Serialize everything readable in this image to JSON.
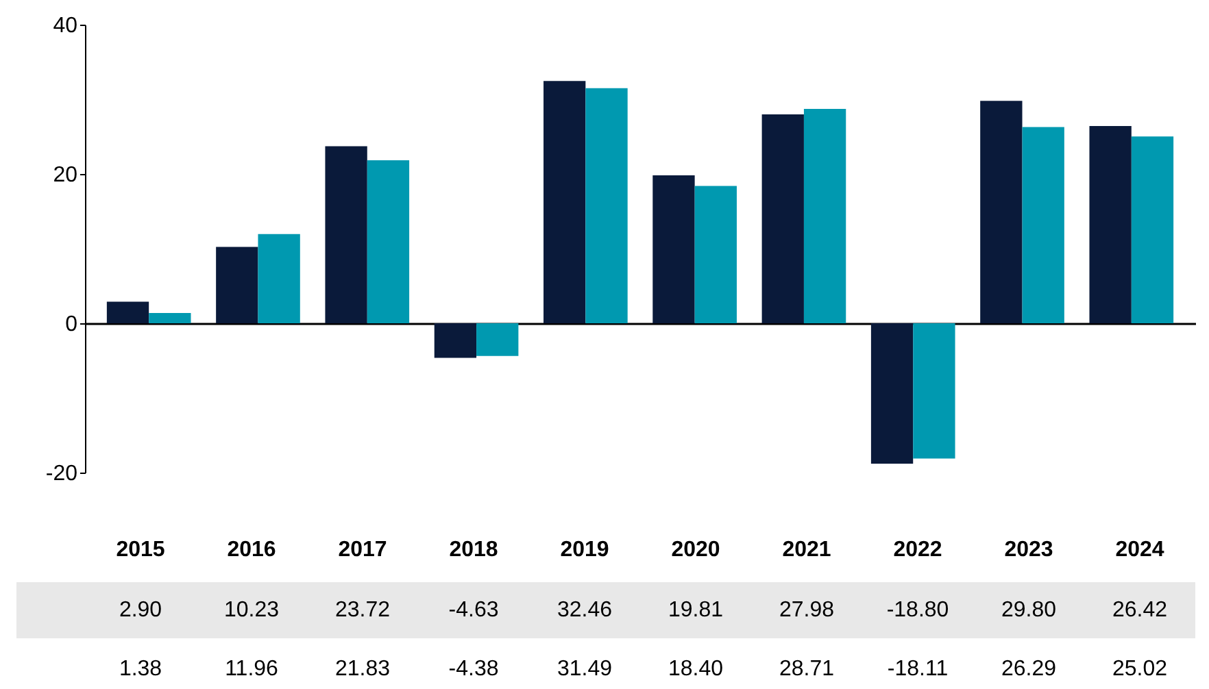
{
  "chart_data": {
    "type": "bar",
    "categories": [
      "2015",
      "2016",
      "2017",
      "2018",
      "2019",
      "2020",
      "2021",
      "2022",
      "2023",
      "2024"
    ],
    "series": [
      {
        "color": "#0a1a3a",
        "values": [
          2.9,
          10.23,
          23.72,
          -4.63,
          32.46,
          19.81,
          27.98,
          -18.8,
          29.8,
          26.42
        ],
        "value_labels": [
          "2.90",
          "10.23",
          "23.72",
          "-4.63",
          "32.46",
          "19.81",
          "27.98",
          "-18.80",
          "29.80",
          "26.42"
        ]
      },
      {
        "color": "#0099b0",
        "values": [
          1.38,
          11.96,
          21.83,
          -4.38,
          31.49,
          18.4,
          28.71,
          -18.11,
          26.29,
          25.02
        ],
        "value_labels": [
          "1.38",
          "11.96",
          "21.83",
          "-4.38",
          "31.49",
          "18.40",
          "28.71",
          "-18.11",
          "26.29",
          "25.02"
        ]
      }
    ],
    "ylim": [
      -20,
      40
    ],
    "yticks": [
      -20,
      0,
      20,
      40
    ],
    "legend": false
  }
}
